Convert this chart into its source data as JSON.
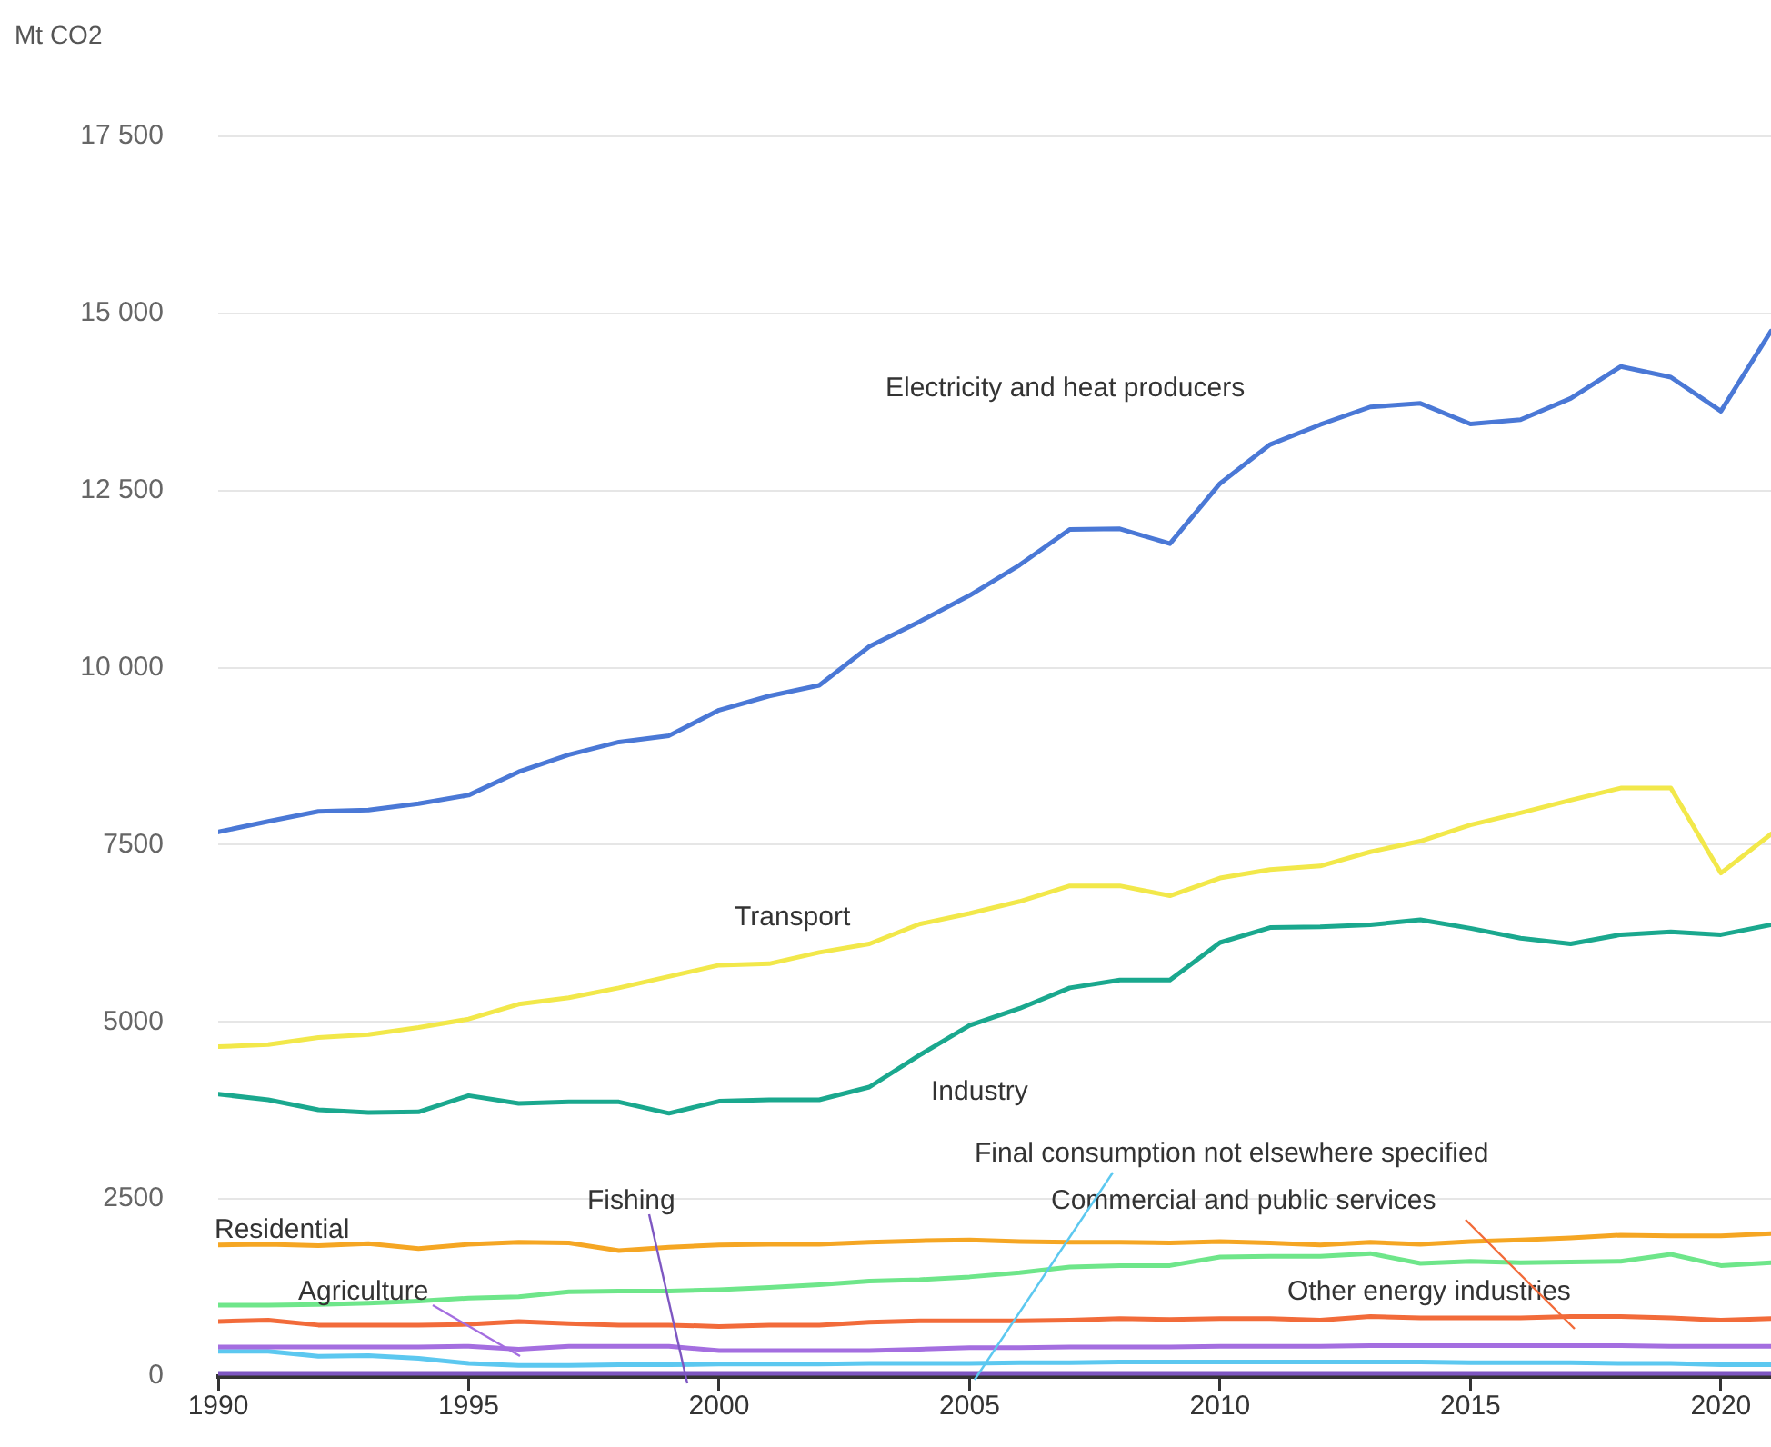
{
  "chart_data": {
    "type": "line",
    "ylabel": "Mt CO2",
    "x": [
      1990,
      1991,
      1992,
      1993,
      1994,
      1995,
      1996,
      1997,
      1998,
      1999,
      2000,
      2001,
      2002,
      2003,
      2004,
      2005,
      2006,
      2007,
      2008,
      2009,
      2010,
      2011,
      2012,
      2013,
      2014,
      2015,
      2016,
      2017,
      2018,
      2019,
      2020,
      2021
    ],
    "xlim": [
      1990,
      2021
    ],
    "xticks": [
      1990,
      1995,
      2000,
      2005,
      2010,
      2015,
      2020
    ],
    "ylim": [
      0,
      17500
    ],
    "yticks": [
      0,
      2500,
      5000,
      {
        "value": 7500,
        "label": "7500"
      },
      {
        "value": 10000,
        "label": "10 000"
      },
      {
        "value": 12500,
        "label": "12 500"
      },
      {
        "value": 15000,
        "label": "15 000"
      },
      {
        "value": 17500,
        "label": "17 500"
      }
    ],
    "grid": "y",
    "legend": false,
    "marker": "none",
    "line_style": "solid",
    "series": [
      {
        "name": "Electricity and heat producers",
        "color": "#4a78d6",
        "values": [
          7680,
          7830,
          7970,
          7990,
          8080,
          8200,
          8530,
          8770,
          8950,
          9040,
          9400,
          9600,
          9750,
          10300,
          10650,
          11020,
          11450,
          11950,
          11960,
          11750,
          12600,
          13150,
          13430,
          13680,
          13730,
          13440,
          13500,
          13800,
          14250,
          14100,
          13620,
          14750
        ]
      },
      {
        "name": "Transport",
        "color": "#f2e84a",
        "values": [
          4650,
          4680,
          4780,
          4820,
          4920,
          5040,
          5250,
          5340,
          5480,
          5640,
          5800,
          5820,
          5980,
          6100,
          6380,
          6530,
          6700,
          6920,
          6920,
          6780,
          7030,
          7150,
          7200,
          7400,
          7550,
          7780,
          7950,
          8130,
          8300,
          8300,
          7100,
          7650
        ]
      },
      {
        "name": "Industry",
        "color": "#1aa88e",
        "values": [
          3980,
          3900,
          3760,
          3720,
          3730,
          3960,
          3850,
          3870,
          3870,
          3710,
          3880,
          3900,
          3900,
          4080,
          4530,
          4950,
          5190,
          5480,
          5590,
          5590,
          6120,
          6330,
          6340,
          6370,
          6440,
          6320,
          6180,
          6100,
          6230,
          6270,
          6230,
          6370
        ]
      },
      {
        "name": "Residential",
        "color": "#f5a623",
        "values": [
          1850,
          1860,
          1840,
          1870,
          1800,
          1860,
          1890,
          1880,
          1770,
          1820,
          1850,
          1860,
          1860,
          1890,
          1910,
          1920,
          1900,
          1890,
          1890,
          1880,
          1900,
          1880,
          1850,
          1890,
          1860,
          1900,
          1920,
          1950,
          1990,
          1980,
          1980,
          2010
        ]
      },
      {
        "name": "Other energy industries",
        "color": "#6ee68a",
        "values": [
          1000,
          1000,
          1010,
          1030,
          1060,
          1100,
          1120,
          1190,
          1200,
          1200,
          1220,
          1250,
          1290,
          1340,
          1360,
          1400,
          1460,
          1540,
          1560,
          1560,
          1680,
          1690,
          1690,
          1730,
          1590,
          1620,
          1600,
          1610,
          1620,
          1720,
          1560,
          1600
        ]
      },
      {
        "name": "Commercial and public services",
        "color": "#f26b3a",
        "values": [
          770,
          790,
          720,
          720,
          720,
          730,
          770,
          740,
          720,
          720,
          700,
          720,
          720,
          760,
          780,
          780,
          780,
          790,
          810,
          800,
          810,
          810,
          790,
          840,
          820,
          820,
          820,
          840,
          840,
          820,
          790,
          810
        ]
      },
      {
        "name": "Agriculture",
        "color": "#a46ee0",
        "values": [
          410,
          410,
          410,
          410,
          410,
          420,
          380,
          420,
          420,
          420,
          360,
          360,
          360,
          360,
          380,
          400,
          400,
          410,
          410,
          410,
          420,
          420,
          420,
          430,
          430,
          430,
          430,
          430,
          430,
          420,
          420,
          420
        ]
      },
      {
        "name": "Final consumption not elsewhere specified",
        "color": "#5cc8f0",
        "values": [
          350,
          350,
          280,
          290,
          250,
          180,
          150,
          150,
          160,
          160,
          170,
          170,
          170,
          180,
          180,
          180,
          190,
          190,
          200,
          200,
          200,
          200,
          200,
          200,
          200,
          190,
          190,
          190,
          180,
          180,
          160,
          160
        ]
      },
      {
        "name": "Fishing",
        "color": "#7e57c2",
        "values": [
          40,
          40,
          40,
          40,
          40,
          40,
          40,
          40,
          40,
          40,
          40,
          40,
          40,
          40,
          40,
          40,
          40,
          40,
          40,
          40,
          40,
          40,
          40,
          40,
          40,
          40,
          40,
          40,
          40,
          40,
          40,
          40
        ]
      }
    ]
  }
}
